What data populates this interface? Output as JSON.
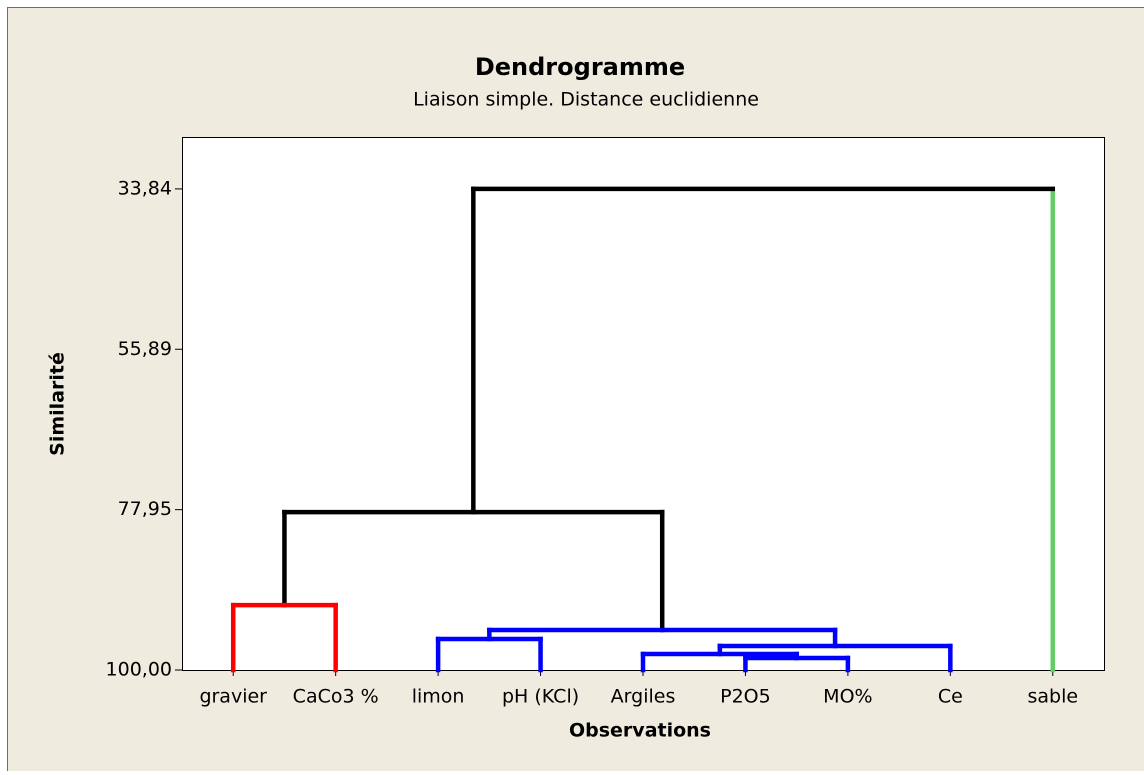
{
  "chart_data": {
    "type": "dendrogram",
    "title": "Dendrogramme",
    "subtitle": "Liaison simple. Distance euclidienne",
    "xlabel": "Observations",
    "ylabel": "Similarité",
    "categories": [
      "gravier",
      "CaCo3 %",
      "limon",
      "pH (KCl)",
      "Argiles",
      "P2O5",
      "MO%",
      "Ce",
      "sable"
    ],
    "leaf_colors": [
      "#ff0000",
      "#ff0000",
      "#0000ff",
      "#0000ff",
      "#0000ff",
      "#0000ff",
      "#0000ff",
      "#0000ff",
      "#66cc66"
    ],
    "merges": [
      {
        "left": 5,
        "right": 6,
        "height": 98.35,
        "color": "#0000ff"
      },
      {
        "left": 4,
        "right": 9,
        "height": 97.8,
        "color": "#0000ff"
      },
      {
        "left": 10,
        "right": 7,
        "height": 96.7,
        "color": "#0000ff"
      },
      {
        "left": 2,
        "right": 3,
        "height": 95.74,
        "color": "#0000ff"
      },
      {
        "left": 12,
        "right": 11,
        "height": 94.5,
        "color": "#0000ff"
      },
      {
        "left": 0,
        "right": 1,
        "height": 91.07,
        "color": "#ff0000"
      },
      {
        "left": 14,
        "right": 13,
        "height": 78.29,
        "color": "#000000"
      },
      {
        "left": 15,
        "right": 8,
        "height": 33.84,
        "color": "#000000"
      }
    ],
    "ylim": [
      100,
      26.7
    ],
    "yticks": [
      {
        "value": 33.84,
        "label": "33,84"
      },
      {
        "value": 55.89,
        "label": "55,89"
      },
      {
        "value": 77.95,
        "label": "77,95"
      },
      {
        "value": 100,
        "label": "100,00"
      }
    ]
  }
}
